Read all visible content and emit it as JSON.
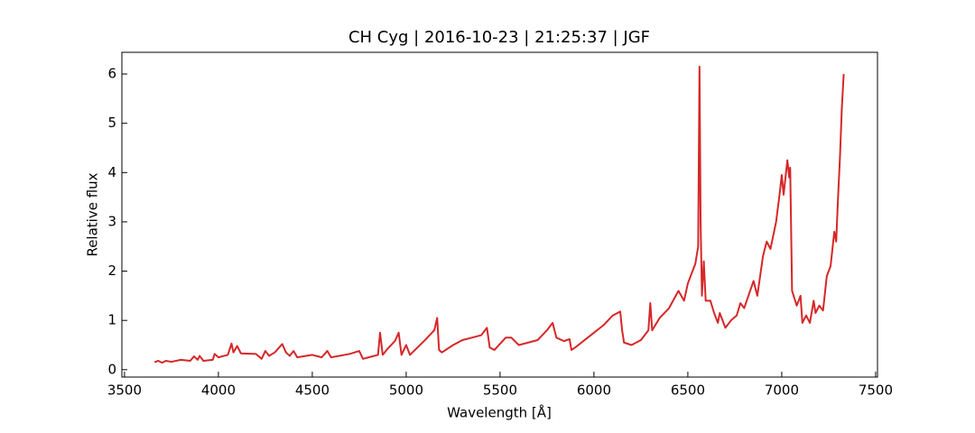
{
  "chart_data": {
    "type": "line",
    "title": "CH Cyg | 2016-10-23 | 21:25:37 | JGF",
    "x_label": "Wavelength [Å]",
    "y_label": "Relative flux",
    "x": [
      3660,
      3680,
      3700,
      3720,
      3750,
      3800,
      3850,
      3870,
      3890,
      3900,
      3920,
      3970,
      3980,
      4000,
      4050,
      4070,
      4080,
      4100,
      4120,
      4200,
      4230,
      4250,
      4270,
      4300,
      4340,
      4360,
      4380,
      4400,
      4420,
      4500,
      4550,
      4580,
      4600,
      4700,
      4750,
      4770,
      4800,
      4850,
      4861,
      4875,
      4900,
      4940,
      4960,
      4975,
      5000,
      5020,
      5100,
      5150,
      5165,
      5175,
      5190,
      5250,
      5300,
      5350,
      5400,
      5430,
      5445,
      5470,
      5530,
      5560,
      5600,
      5650,
      5700,
      5750,
      5780,
      5800,
      5840,
      5870,
      5880,
      5900,
      6000,
      6050,
      6100,
      6140,
      6150,
      6160,
      6200,
      6250,
      6290,
      6300,
      6310,
      6350,
      6400,
      6450,
      6480,
      6500,
      6540,
      6555,
      6562,
      6568,
      6575,
      6585,
      6595,
      6620,
      6640,
      6660,
      6670,
      6700,
      6730,
      6760,
      6780,
      6800,
      6850,
      6870,
      6900,
      6920,
      6940,
      6970,
      6990,
      7000,
      7010,
      7030,
      7040,
      7045,
      7055,
      7080,
      7100,
      7110,
      7130,
      7150,
      7170,
      7180,
      7200,
      7220,
      7240,
      7260,
      7280,
      7290,
      7300,
      7310,
      7320,
      7330
    ],
    "series": [
      {
        "name": "CH Cyg",
        "color": "#d62728",
        "values": [
          0.15,
          0.18,
          0.14,
          0.18,
          0.16,
          0.2,
          0.18,
          0.27,
          0.2,
          0.28,
          0.18,
          0.2,
          0.32,
          0.25,
          0.3,
          0.53,
          0.35,
          0.48,
          0.33,
          0.32,
          0.22,
          0.38,
          0.28,
          0.35,
          0.52,
          0.35,
          0.28,
          0.38,
          0.25,
          0.3,
          0.25,
          0.38,
          0.25,
          0.32,
          0.38,
          0.22,
          0.25,
          0.3,
          0.75,
          0.3,
          0.42,
          0.58,
          0.75,
          0.3,
          0.5,
          0.3,
          0.6,
          0.8,
          1.05,
          0.4,
          0.35,
          0.5,
          0.6,
          0.65,
          0.7,
          0.85,
          0.45,
          0.4,
          0.65,
          0.65,
          0.5,
          0.55,
          0.6,
          0.8,
          0.95,
          0.65,
          0.58,
          0.62,
          0.4,
          0.45,
          0.75,
          0.9,
          1.1,
          1.18,
          0.8,
          0.55,
          0.5,
          0.6,
          0.8,
          1.35,
          0.8,
          1.05,
          1.25,
          1.6,
          1.4,
          1.75,
          2.15,
          2.5,
          6.15,
          3.0,
          1.5,
          2.2,
          1.4,
          1.4,
          1.15,
          0.95,
          1.15,
          0.85,
          1.0,
          1.1,
          1.35,
          1.25,
          1.8,
          1.5,
          2.3,
          2.6,
          2.45,
          3.0,
          3.6,
          3.95,
          3.55,
          4.25,
          3.9,
          4.1,
          1.6,
          1.3,
          1.5,
          0.95,
          1.1,
          0.95,
          1.4,
          1.15,
          1.3,
          1.2,
          1.9,
          2.1,
          2.8,
          2.6,
          3.5,
          4.3,
          5.3,
          6.0
        ]
      }
    ],
    "xlim": [
      3486,
      7510
    ],
    "ylim": [
      -0.15,
      6.44
    ],
    "xticks": [
      3500,
      4000,
      4500,
      5000,
      5500,
      6000,
      6500,
      7000,
      7500
    ],
    "yticks": [
      0,
      1,
      2,
      3,
      4,
      5,
      6
    ]
  }
}
